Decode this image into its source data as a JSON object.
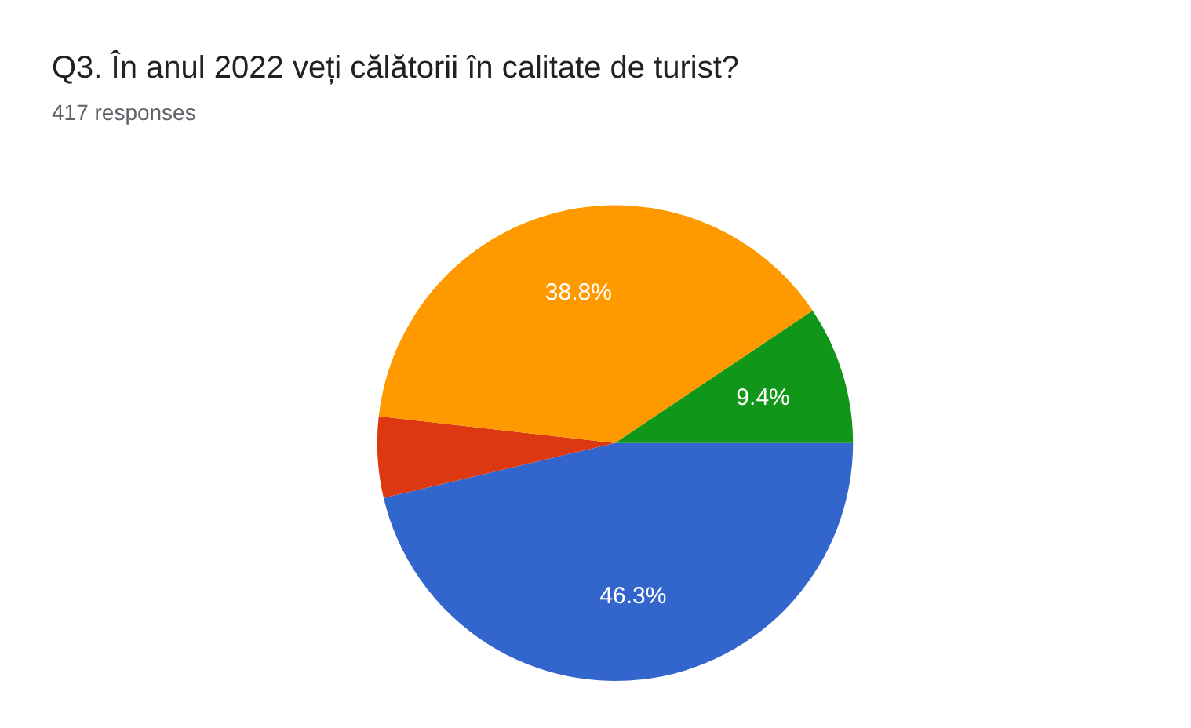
{
  "chart_data": {
    "type": "pie",
    "title": "Q3. În anul 2022 veți călătorii în calitate de turist?",
    "subtitle": "417 responses",
    "categories": [
      null,
      null,
      null,
      null
    ],
    "values": [
      46.3,
      5.5,
      38.8,
      9.4
    ],
    "colors": [
      "#3366cc",
      "#dc3912",
      "#ff9900",
      "#109618"
    ],
    "value_labels": [
      "46.3%",
      null,
      "38.8%",
      "9.4%"
    ],
    "legend": false
  }
}
